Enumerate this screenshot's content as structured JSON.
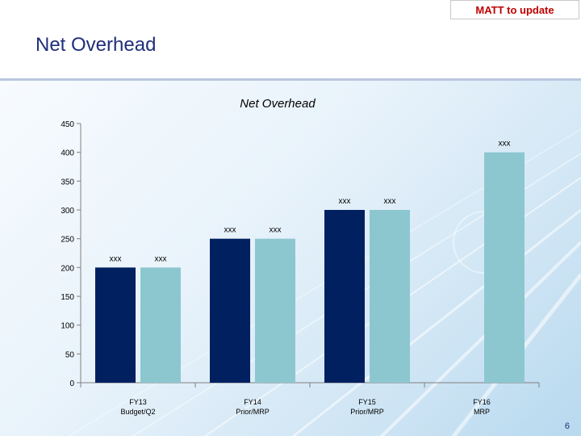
{
  "badge": {
    "text": "MATT to update"
  },
  "slide": {
    "title": "Net Overhead",
    "page_number": "6"
  },
  "colors": {
    "series_dark": "#002060",
    "series_light": "#8cc7d0",
    "axis": "#808080"
  },
  "chart_data": {
    "type": "bar",
    "title": "Net Overhead",
    "xlabel": "",
    "ylabel": "",
    "ylim": [
      0,
      450
    ],
    "yticks": [
      0,
      50,
      100,
      150,
      200,
      250,
      300,
      350,
      400,
      450
    ],
    "categories": [
      {
        "line1": "FY13",
        "line2": "Budget/Q2"
      },
      {
        "line1": "FY14",
        "line2": "Prior/MRP"
      },
      {
        "line1": "FY15",
        "line2": "Prior/MRP"
      },
      {
        "line1": "FY16",
        "line2": "MRP"
      }
    ],
    "series": [
      {
        "name": "Series 1",
        "color": "#002060",
        "values": [
          200,
          250,
          300,
          null
        ],
        "labels": [
          "xxx",
          "xxx",
          "xxx",
          null
        ]
      },
      {
        "name": "Series 2",
        "color": "#8cc7d0",
        "values": [
          200,
          250,
          300,
          400
        ],
        "labels": [
          "xxx",
          "xxx",
          "xxx",
          "xxx"
        ]
      }
    ]
  }
}
